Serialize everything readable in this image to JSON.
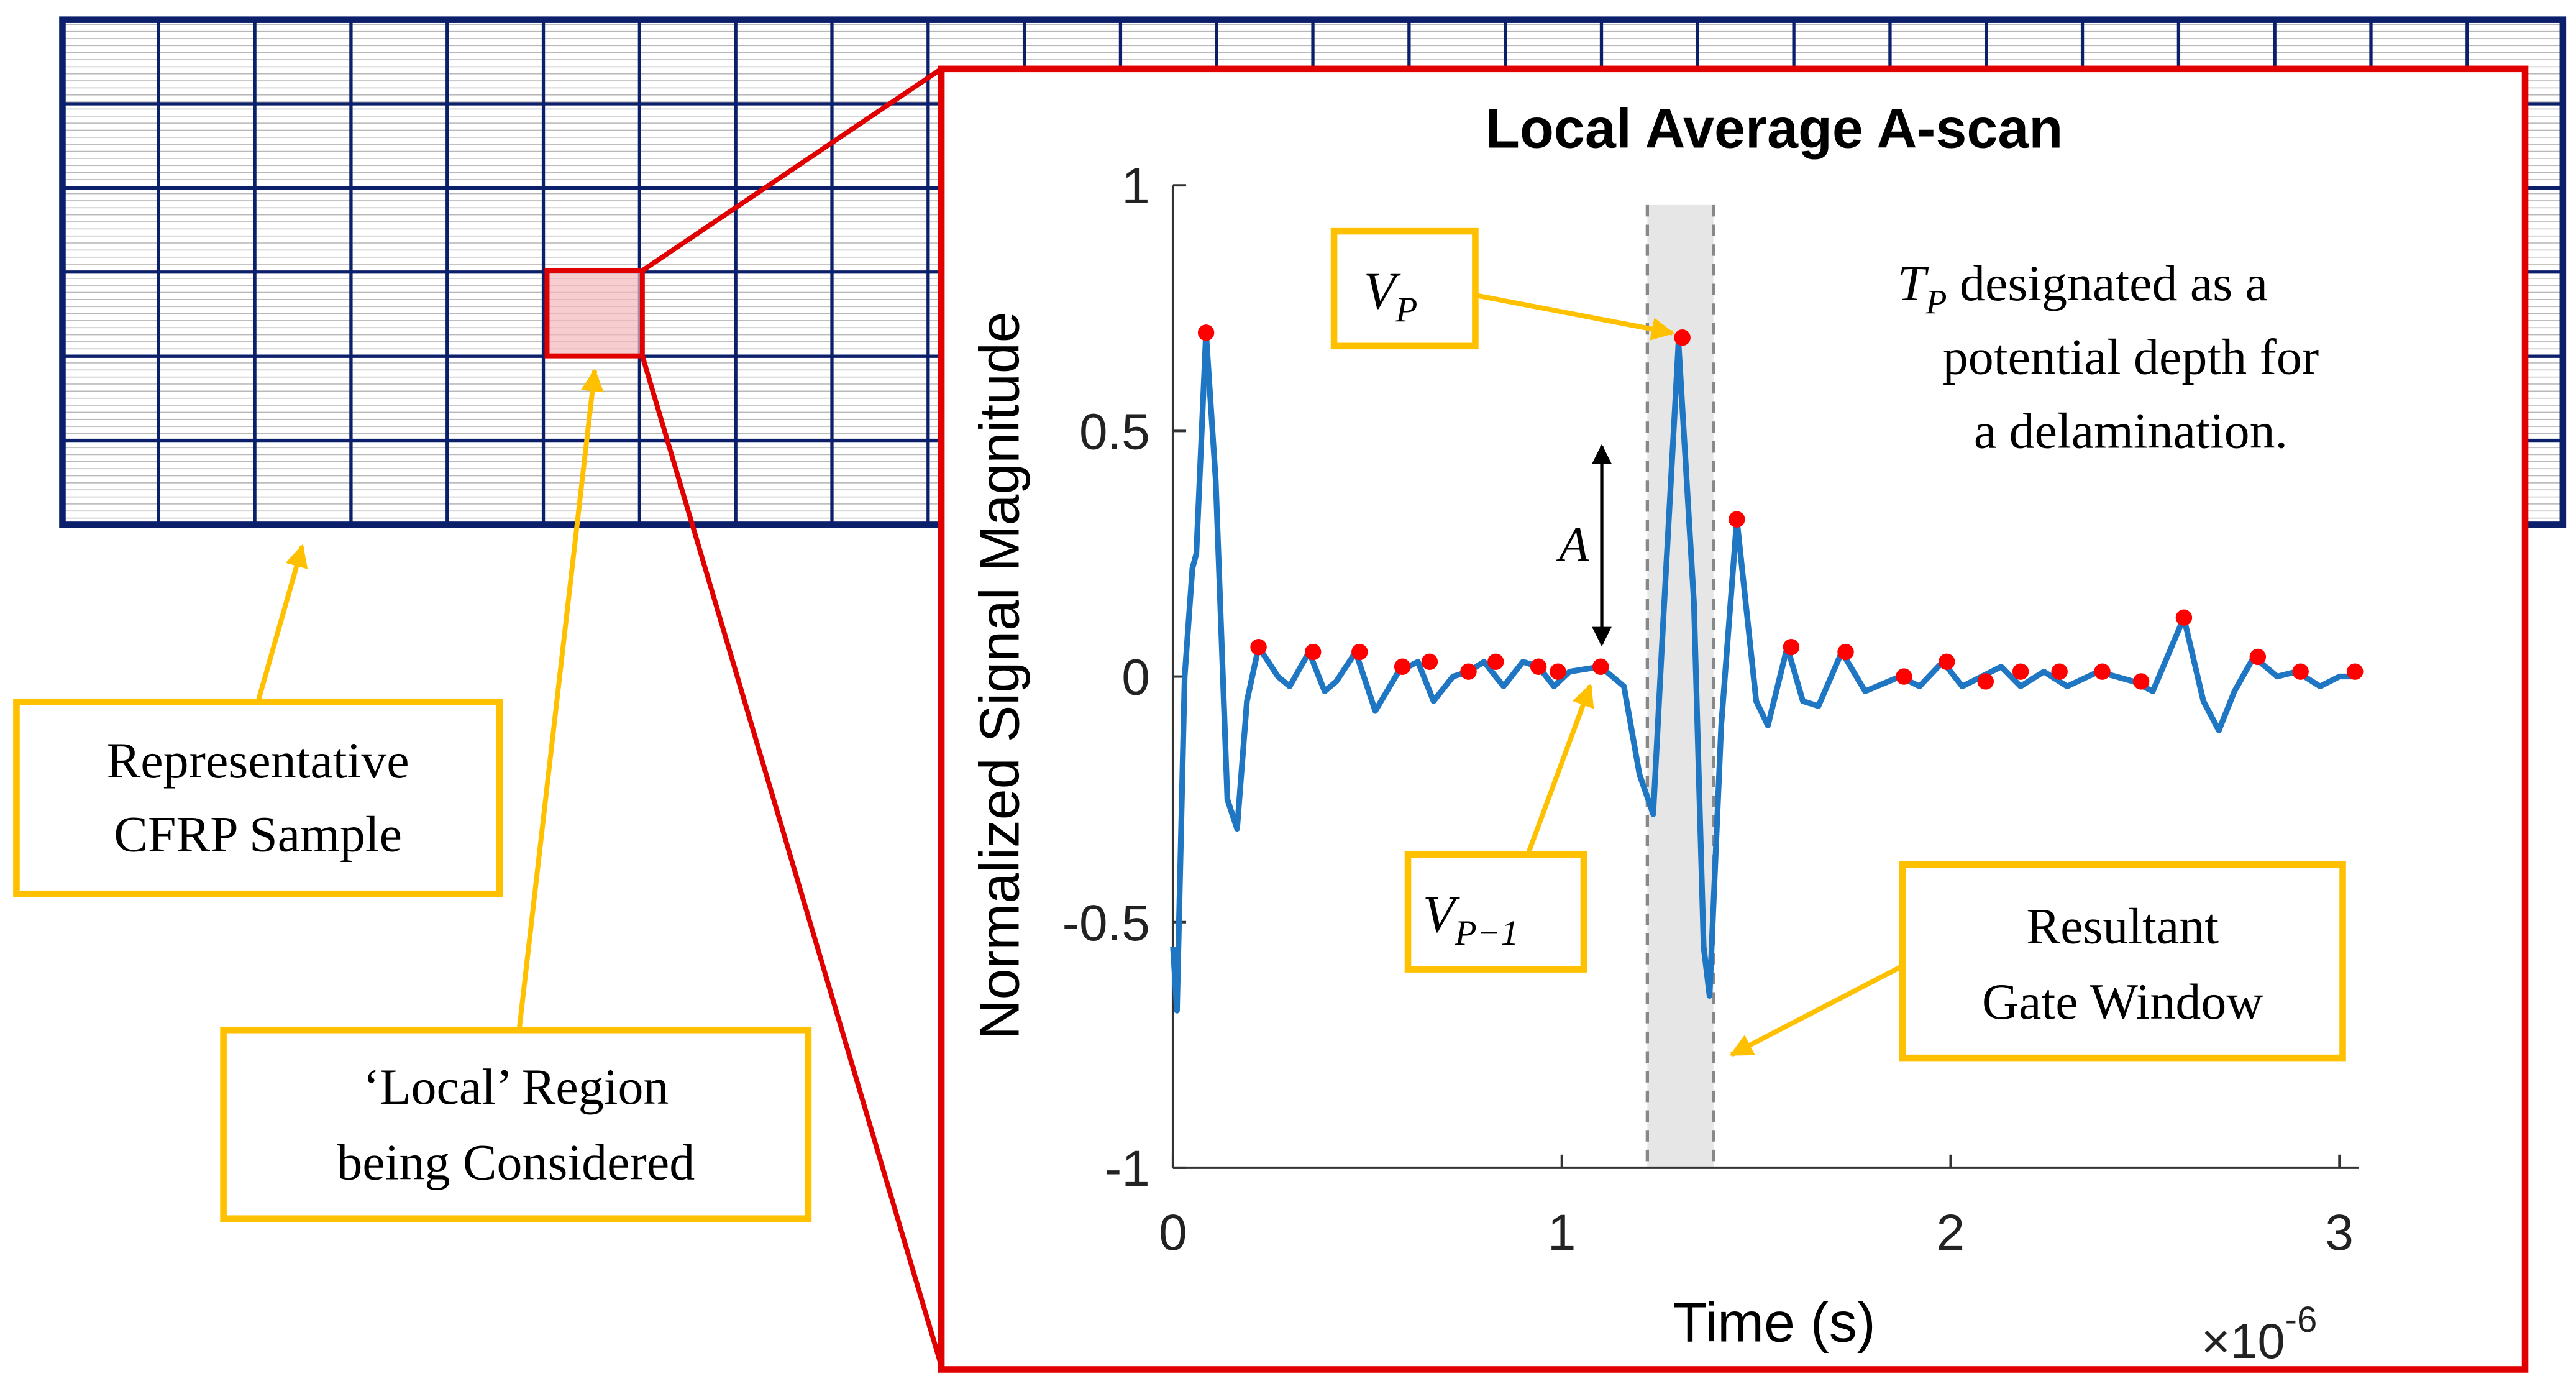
{
  "diagram": {
    "sample_label": [
      "Representative",
      "CFRP Sample"
    ],
    "region_label": [
      "‘Local’ Region",
      "being Considered"
    ],
    "gate_label": [
      "Resultant",
      "Gate Window"
    ]
  },
  "chart_data": {
    "type": "line",
    "title": "Local Average A-scan",
    "xlabel": "Time (s)",
    "ylabel": "Normalized Signal Magnitude",
    "x_multiplier": {
      "base": "×10",
      "exponent": "-6"
    },
    "xlim": [
      0,
      3.05
    ],
    "xticks": [
      0,
      1,
      2,
      3
    ],
    "ylim": [
      -1,
      1
    ],
    "yticks": [
      -1,
      -0.5,
      0,
      0.5,
      1
    ],
    "color": "#1f77c4",
    "x": [
      0,
      0.01,
      0.03,
      0.05,
      0.06,
      0.085,
      0.11,
      0.14,
      0.165,
      0.19,
      0.22,
      0.27,
      0.3,
      0.35,
      0.39,
      0.42,
      0.47,
      0.52,
      0.58,
      0.63,
      0.67,
      0.72,
      0.76,
      0.8,
      0.85,
      0.9,
      0.94,
      0.98,
      1.02,
      1.1,
      1.16,
      1.2,
      1.235,
      1.26,
      1.3,
      1.34,
      1.365,
      1.38,
      1.41,
      1.45,
      1.5,
      1.53,
      1.58,
      1.62,
      1.66,
      1.72,
      1.78,
      1.87,
      1.92,
      1.98,
      2.03,
      2.08,
      2.13,
      2.18,
      2.24,
      2.3,
      2.38,
      2.47,
      2.52,
      2.6,
      2.65,
      2.69,
      2.73,
      2.78,
      2.84,
      2.89,
      2.95,
      3.0,
      3.05
    ],
    "values": [
      -0.55,
      -0.68,
      0.0,
      0.22,
      0.25,
      0.7,
      0.4,
      -0.25,
      -0.31,
      -0.05,
      0.06,
      0.0,
      -0.02,
      0.05,
      -0.03,
      -0.01,
      0.05,
      -0.07,
      0.01,
      0.03,
      -0.05,
      0.0,
      0.01,
      0.03,
      -0.02,
      0.03,
      0.02,
      -0.02,
      0.01,
      0.02,
      -0.02,
      -0.2,
      -0.28,
      0.1,
      0.68,
      0.15,
      -0.55,
      -0.65,
      -0.1,
      0.32,
      -0.05,
      -0.1,
      0.06,
      -0.05,
      -0.06,
      0.05,
      -0.03,
      0.0,
      -0.02,
      0.03,
      -0.02,
      0.0,
      0.02,
      -0.02,
      0.01,
      -0.02,
      0.01,
      -0.01,
      -0.03,
      0.12,
      -0.05,
      -0.11,
      -0.03,
      0.04,
      0.0,
      0.01,
      -0.02,
      0.0,
      0.0
    ],
    "peaks": {
      "color": "#ff0000",
      "x": [
        0.085,
        0.22,
        0.36,
        0.48,
        0.59,
        0.66,
        0.76,
        0.83,
        0.94,
        0.99,
        1.1,
        1.31,
        1.45,
        1.59,
        1.73,
        1.88,
        1.99,
        2.09,
        2.18,
        2.28,
        2.39,
        2.49,
        2.6,
        2.79,
        2.9,
        3.04
      ],
      "values": [
        0.7,
        0.06,
        0.05,
        0.05,
        0.02,
        0.03,
        0.01,
        0.03,
        0.02,
        0.01,
        0.02,
        0.69,
        0.32,
        0.06,
        0.05,
        0.0,
        0.03,
        -0.01,
        0.01,
        0.01,
        0.01,
        -0.01,
        0.12,
        0.04,
        0.01,
        0.01
      ]
    },
    "gate_window": [
      1.22,
      1.39
    ],
    "annotations": {
      "vp": {
        "base": "V",
        "sub": "P"
      },
      "vp1": {
        "base": "V",
        "sub": "P−1"
      },
      "a": "A",
      "note": {
        "base": "T",
        "sub": "P",
        "lines": [
          " designated as a",
          "potential depth for",
          "a delamination."
        ]
      }
    }
  }
}
